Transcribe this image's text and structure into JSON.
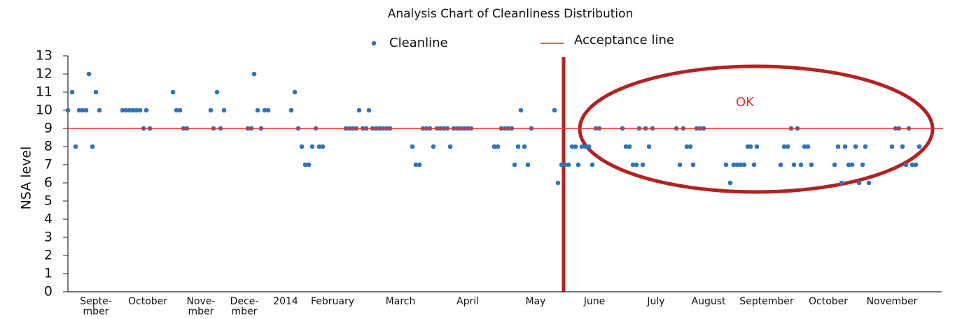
{
  "chart_data": {
    "type": "scatter",
    "title": "Analysis Chart of Cleanliness Distribution",
    "y_label": "NSA level",
    "annotation": "OK",
    "xlim": [
      0,
      1250
    ],
    "xticks": [
      {
        "value": 40,
        "label": "Septe-\nmber"
      },
      {
        "value": 114,
        "label": "October"
      },
      {
        "value": 190,
        "label": "Nove-\nmber"
      },
      {
        "value": 252,
        "label": "Dece-\nmber"
      },
      {
        "value": 311,
        "label": "2014"
      },
      {
        "value": 378,
        "label": "February"
      },
      {
        "value": 475,
        "label": "March"
      },
      {
        "value": 571,
        "label": "April"
      },
      {
        "value": 668,
        "label": "May"
      },
      {
        "value": 752,
        "label": "June"
      },
      {
        "value": 840,
        "label": "July"
      },
      {
        "value": 915,
        "label": "August"
      },
      {
        "value": 998,
        "label": "September"
      },
      {
        "value": 1086,
        "label": "October"
      },
      {
        "value": 1177,
        "label": "November"
      }
    ],
    "ylim": [
      0,
      13
    ],
    "yticks": [
      0,
      1,
      2,
      3,
      4,
      5,
      6,
      7,
      8,
      9,
      10,
      11,
      12,
      13
    ],
    "series": [
      {
        "name": "Cleanline",
        "color": "#2e75b6",
        "x": [
          0,
          6,
          11,
          16,
          21,
          26,
          30,
          35,
          40,
          45,
          78,
          83,
          88,
          93,
          98,
          103,
          108,
          112,
          117,
          150,
          155,
          160,
          165,
          170,
          204,
          208,
          213,
          218,
          223,
          257,
          262,
          266,
          271,
          276,
          281,
          286,
          319,
          324,
          329,
          334,
          339,
          344,
          349,
          354,
          359,
          364,
          397,
          402,
          407,
          412,
          416,
          421,
          426,
          430,
          435,
          440,
          445,
          450,
          455,
          460,
          492,
          497,
          502,
          507,
          512,
          517,
          522,
          527,
          532,
          537,
          542,
          546,
          551,
          556,
          561,
          566,
          571,
          576,
          609,
          614,
          619,
          624,
          629,
          634,
          638,
          643,
          647,
          652,
          657,
          662,
          695,
          700,
          705,
          710,
          715,
          720,
          725,
          729,
          734,
          739,
          744,
          749,
          754,
          759,
          792,
          797,
          802,
          807,
          812,
          816,
          821,
          825,
          830,
          835,
          869,
          874,
          879,
          884,
          889,
          893,
          898,
          903,
          908,
          940,
          946,
          951,
          956,
          961,
          966,
          971,
          975,
          980,
          984,
          1018,
          1023,
          1028,
          1033,
          1037,
          1042,
          1047,
          1052,
          1057,
          1062,
          1095,
          1100,
          1105,
          1110,
          1115,
          1120,
          1125,
          1130,
          1135,
          1139,
          1144,
          1177,
          1182,
          1187,
          1192,
          1197,
          1201,
          1206,
          1211,
          1216
        ],
        "values": [
          10,
          11,
          8,
          10,
          10,
          10,
          12,
          8,
          11,
          10,
          10,
          10,
          10,
          10,
          10,
          10,
          9,
          10,
          9,
          11,
          10,
          10,
          9,
          9,
          10,
          9,
          11,
          9,
          10,
          9,
          9,
          12,
          10,
          9,
          10,
          10,
          10,
          11,
          9,
          8,
          7,
          7,
          8,
          9,
          8,
          8,
          9,
          9,
          9,
          9,
          10,
          9,
          9,
          10,
          9,
          9,
          9,
          9,
          9,
          9,
          8,
          7,
          7,
          9,
          9,
          9,
          8,
          9,
          9,
          9,
          9,
          8,
          9,
          9,
          9,
          9,
          9,
          9,
          8,
          8,
          9,
          9,
          9,
          9,
          7,
          8,
          10,
          8,
          7,
          9,
          10,
          6,
          7,
          7,
          7,
          8,
          8,
          7,
          8,
          8,
          8,
          7,
          9,
          9,
          9,
          8,
          8,
          7,
          7,
          9,
          7,
          9,
          8,
          9,
          9,
          7,
          9,
          8,
          8,
          7,
          9,
          9,
          9,
          7,
          6,
          7,
          7,
          7,
          7,
          8,
          8,
          7,
          8,
          7,
          8,
          8,
          9,
          7,
          9,
          7,
          8,
          8,
          7,
          7,
          8,
          6,
          8,
          7,
          7,
          8,
          6,
          7,
          8,
          6,
          8,
          9,
          9,
          8,
          7,
          9,
          7,
          7,
          8
        ]
      },
      {
        "name": "Acceptance line",
        "color": "#e03030",
        "value": 9
      }
    ]
  }
}
